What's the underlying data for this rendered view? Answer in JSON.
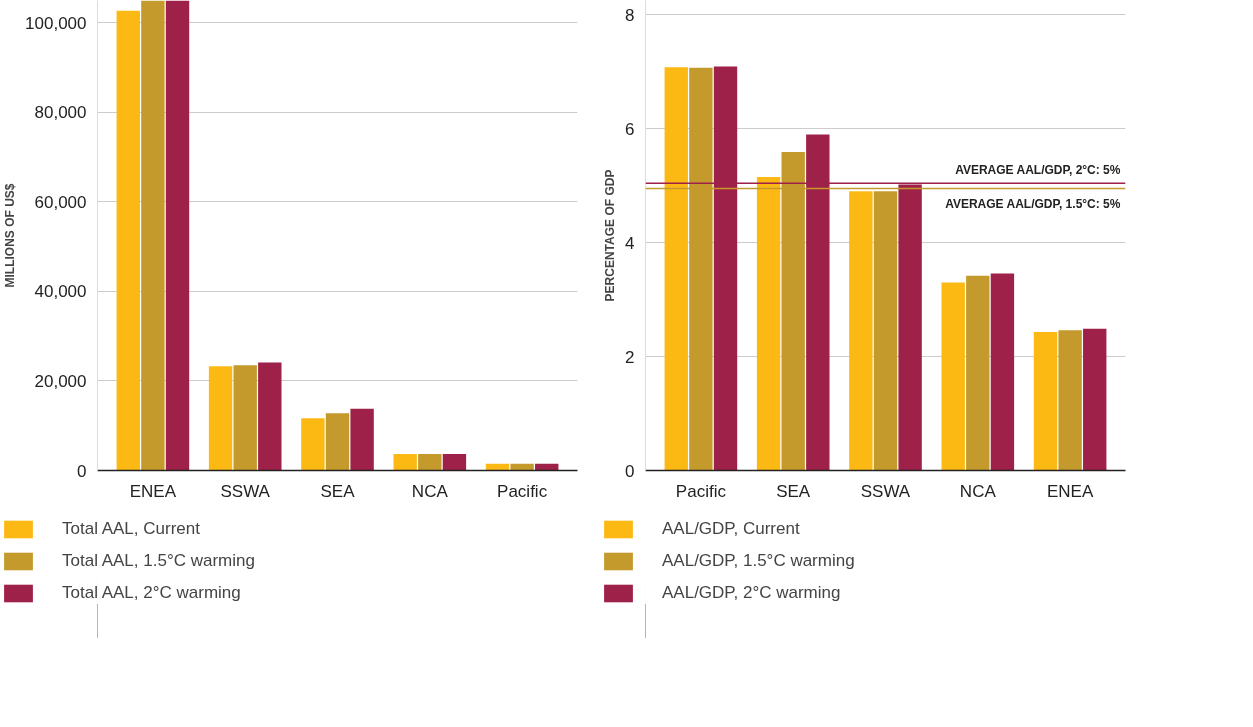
{
  "chart_data": [
    {
      "type": "bar",
      "ylabel": "MILLIONS OF US$",
      "categories": [
        "ENEA",
        "SSWA",
        "SEA",
        "NCA",
        "Pacific"
      ],
      "series": [
        {
          "name": "Total AAL, Current",
          "color": "#fdb913",
          "values": [
            102700,
            23300,
            11700,
            3700,
            1500
          ]
        },
        {
          "name": "Total AAL, 1.5°C warming",
          "color": "#c49a2c",
          "values": [
            105000,
            23500,
            12800,
            3700,
            1500
          ]
        },
        {
          "name": "Total AAL, 2°C warming",
          "color": "#9e2149",
          "values": [
            105000,
            24100,
            13800,
            3700,
            1500
          ]
        }
      ],
      "ylim": [
        0,
        105000
      ],
      "yticks": [
        0,
        {
          "value": 20000,
          "label": "20,000"
        },
        {
          "value": 40000,
          "label": "40,000"
        },
        {
          "value": 60000,
          "label": "60,000"
        },
        {
          "value": 80000,
          "label": "80,000"
        },
        {
          "value": 100000,
          "label": "100,000"
        }
      ],
      "grid": "y",
      "legend": "bottom"
    },
    {
      "type": "bar",
      "ylabel": "PERCENTAGE OF GDP",
      "categories": [
        "Pacific",
        "SEA",
        "SSWA",
        "NCA",
        "ENEA"
      ],
      "series": [
        {
          "name": "AAL/GDP, Current",
          "color": "#fdb913",
          "values": [
            7.08,
            5.15,
            4.9,
            3.3,
            2.43
          ]
        },
        {
          "name": "AAL/GDP, 1.5°C warming",
          "color": "#c49a2c",
          "values": [
            7.07,
            5.59,
            4.9,
            3.42,
            2.46
          ]
        },
        {
          "name": "AAL/GDP, 2°C warming",
          "color": "#9e2149",
          "values": [
            7.09,
            5.9,
            5.02,
            3.46,
            2.49
          ]
        }
      ],
      "ylim": [
        0,
        8.25
      ],
      "yticks": [
        0,
        2,
        4,
        6,
        8
      ],
      "ref_lines": [
        {
          "axis": "y",
          "value": 5.04,
          "label": "AVERAGE AAL/GDP, 2°C: 5%",
          "color": "#9e2149"
        },
        {
          "axis": "y",
          "value": 4.95,
          "label": "AVERAGE AAL/GDP, 1.5°C: 5%",
          "color": "#c49a2c"
        }
      ],
      "grid": "y",
      "legend": "bottom"
    }
  ]
}
